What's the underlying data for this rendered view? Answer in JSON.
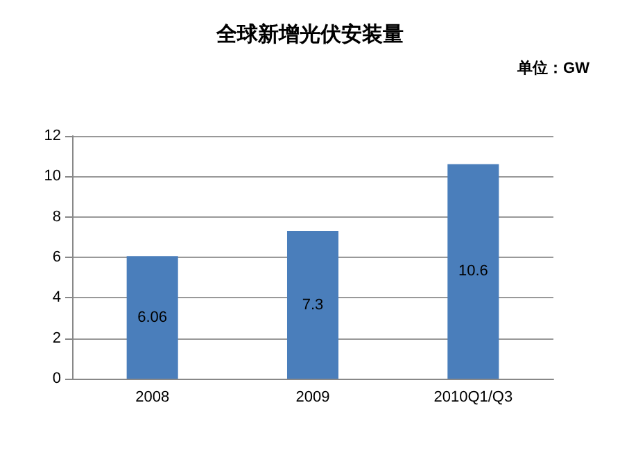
{
  "chart_data": {
    "type": "bar",
    "title": "全球新增光伏安装量",
    "annotations": [
      "单位：GW"
    ],
    "categories": [
      "2008",
      "2009",
      "2010Q1/Q3"
    ],
    "values": [
      6.06,
      7.3,
      10.6
    ],
    "color": "#4a7ebb",
    "ylim": [
      0,
      12
    ],
    "yticks": [
      0,
      2,
      4,
      6,
      8,
      10,
      12
    ],
    "grid": "y",
    "data_labels": true
  }
}
